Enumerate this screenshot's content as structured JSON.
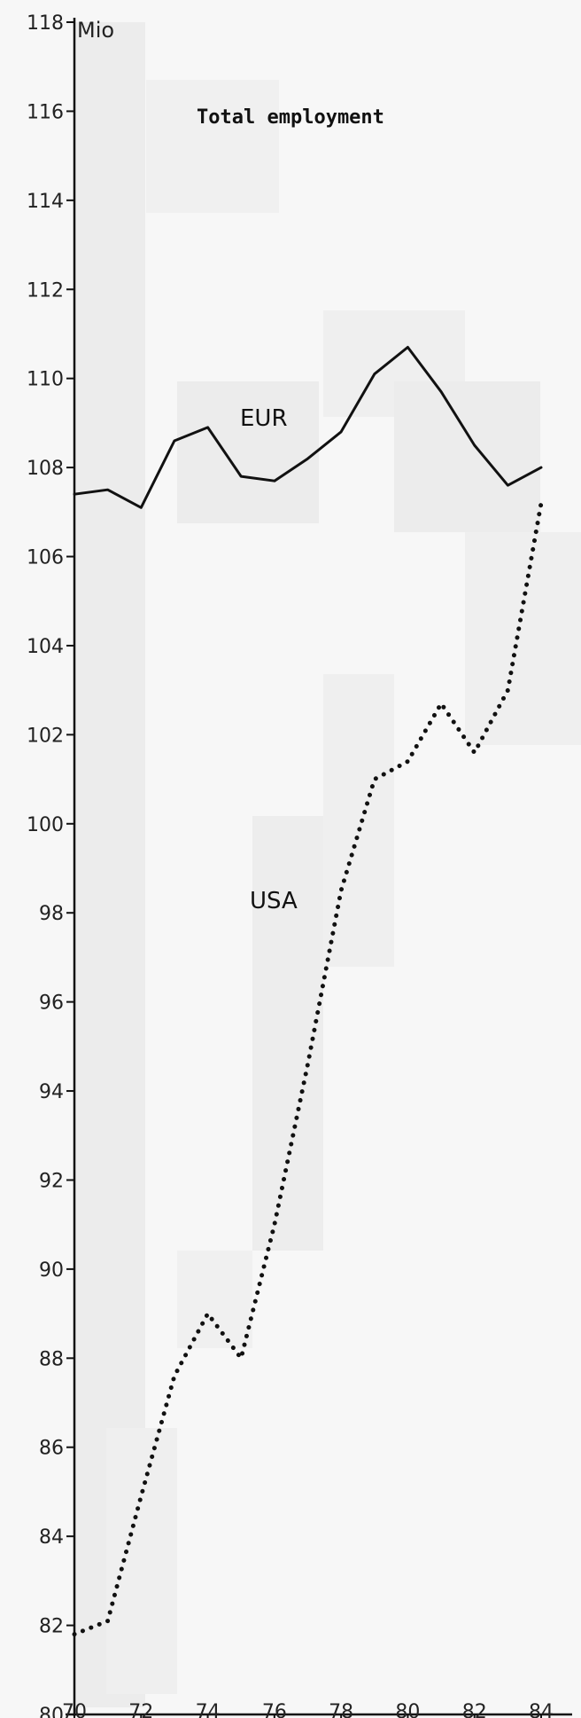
{
  "chart_data": {
    "type": "line",
    "title": "Total employment",
    "ylabel": "Mio",
    "xlabel": "",
    "x": [
      70,
      71,
      72,
      73,
      74,
      75,
      76,
      77,
      78,
      79,
      80,
      81,
      82,
      83,
      84
    ],
    "xticks": [
      "70",
      "72",
      "74",
      "76",
      "78",
      "80",
      "82",
      "84"
    ],
    "yticks": [
      "80",
      "82",
      "84",
      "86",
      "88",
      "90",
      "92",
      "94",
      "96",
      "98",
      "100",
      "102",
      "104",
      "106",
      "108",
      "110",
      "112",
      "114",
      "116",
      "118"
    ],
    "xlim": [
      70,
      84
    ],
    "ylim": [
      80,
      118
    ],
    "grid": false,
    "legend": "inline labels",
    "series": [
      {
        "name": "EUR",
        "style": "solid",
        "color": "#111111",
        "values": [
          107.4,
          107.5,
          107.1,
          108.6,
          108.9,
          107.8,
          107.7,
          108.2,
          108.8,
          110.1,
          110.7,
          109.7,
          108.5,
          107.6,
          108.0
        ]
      },
      {
        "name": "USA",
        "style": "dotted",
        "color": "#111111",
        "values": [
          81.8,
          82.1,
          84.9,
          87.6,
          89.0,
          88.0,
          91.0,
          94.6,
          98.5,
          101.0,
          101.4,
          102.7,
          101.6,
          103.0,
          107.2
        ]
      }
    ]
  }
}
